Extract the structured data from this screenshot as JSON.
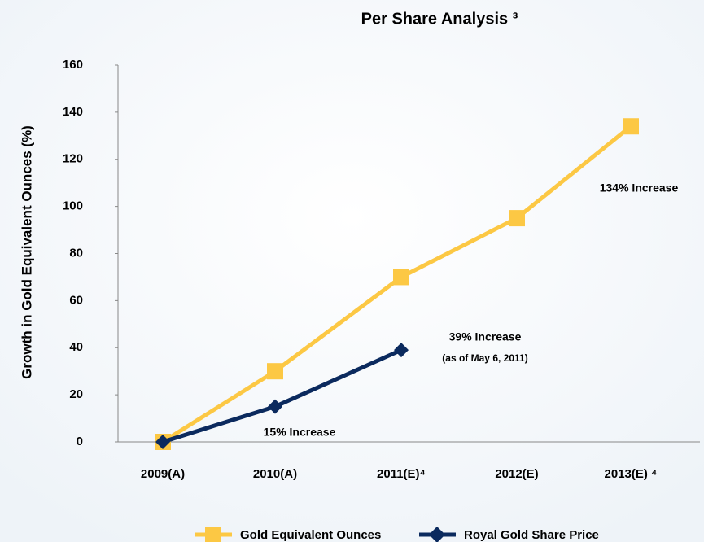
{
  "chart_data": {
    "type": "line",
    "title": "Per Share Analysis ³",
    "y_label": "Growth in Gold Equivalent Ounces (%)",
    "categories": [
      "2009(A)",
      "2010(A)",
      "2011(E)⁴",
      "2012(E)",
      "2013(E) ⁴"
    ],
    "series": [
      {
        "name": "Gold Equivalent Ounces",
        "color": "#fcc844",
        "marker": "square",
        "values": [
          0,
          30,
          70,
          95,
          134
        ]
      },
      {
        "name": "Royal Gold Share Price",
        "color": "#0b2a5e",
        "marker": "diamond",
        "values": [
          0,
          15,
          39,
          null,
          null
        ]
      }
    ],
    "annotations": [
      "134% Increase",
      "39% Increase",
      "(as of May 6, 2011)",
      "15% Increase"
    ],
    "ylim": [
      0,
      160
    ],
    "yticks": [
      0,
      20,
      40,
      60,
      80,
      100,
      120,
      140,
      160
    ],
    "grid": false
  }
}
